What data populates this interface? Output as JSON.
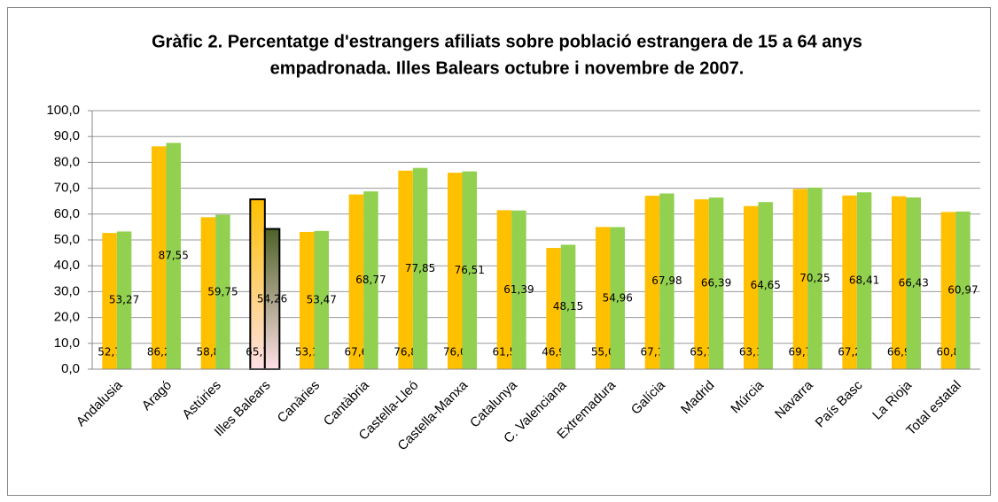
{
  "chart_data": {
    "type": "bar",
    "title": [
      "Gràfic 2. Percentatge d'estrangers afiliats sobre població estrangera de 15 a 64 anys",
      "empadronada. Illes Balears octubre i novembre de 2007."
    ],
    "categories": [
      "Andalusia",
      "Aragó",
      "Astúries",
      "Illes Balears",
      "Canàries",
      "Cantàbria",
      "Castella-Lleó",
      "Castella-Manxa",
      "Catalunya",
      "C. Valenciana",
      "Extremadura",
      "Galícia",
      "Madrid",
      "Múrcia",
      "Navarra",
      "País Basc",
      "La Rioja",
      "Total estatal"
    ],
    "series": [
      {
        "color": "#FFC000",
        "label_position": "base",
        "values": [
          52.7,
          86.2,
          58.8,
          65.7,
          53.1,
          67.6,
          76.8,
          76.0,
          61.5,
          46.9,
          55.0,
          67.1,
          65.7,
          63.1,
          69.7,
          67.2,
          66.9,
          60.8
        ],
        "value_labels": [
          "52,7",
          "86,2",
          "58,8",
          "65,7",
          "53,1",
          "67,6",
          "76,8",
          "76,0",
          "61,5",
          "46,9",
          "55,0",
          "67,1",
          "65,7",
          "63,1",
          "69,7",
          "67,2",
          "66,9",
          "60,8"
        ]
      },
      {
        "color": "#92D050",
        "label_position": "center",
        "values": [
          53.27,
          87.55,
          59.75,
          54.26,
          53.47,
          68.77,
          77.85,
          76.51,
          61.39,
          48.15,
          54.96,
          67.98,
          66.39,
          64.65,
          70.25,
          68.41,
          66.43,
          60.97
        ],
        "value_labels": [
          "53,27",
          "87,55",
          "59,75",
          "54,26",
          "53,47",
          "68,77",
          "77,85",
          "76,51",
          "61,39",
          "48,15",
          "54,96",
          "67,98",
          "66,39",
          "64,65",
          "70,25",
          "68,41",
          "66,43",
          "60,97"
        ]
      }
    ],
    "highlight_index": 3,
    "ylim": [
      0,
      100
    ],
    "yticks": [
      {
        "value": 0,
        "label": "0,0"
      },
      {
        "value": 10,
        "label": "10,0"
      },
      {
        "value": 20,
        "label": "20,0"
      },
      {
        "value": 30,
        "label": "30,0"
      },
      {
        "value": 40,
        "label": "40,0"
      },
      {
        "value": 50,
        "label": "50,0"
      },
      {
        "value": 60,
        "label": "60,0"
      },
      {
        "value": 70,
        "label": "70,0"
      },
      {
        "value": 80,
        "label": "80,0"
      },
      {
        "value": 90,
        "label": "90,0"
      },
      {
        "value": 100,
        "label": "100,0"
      }
    ],
    "grid": true
  }
}
